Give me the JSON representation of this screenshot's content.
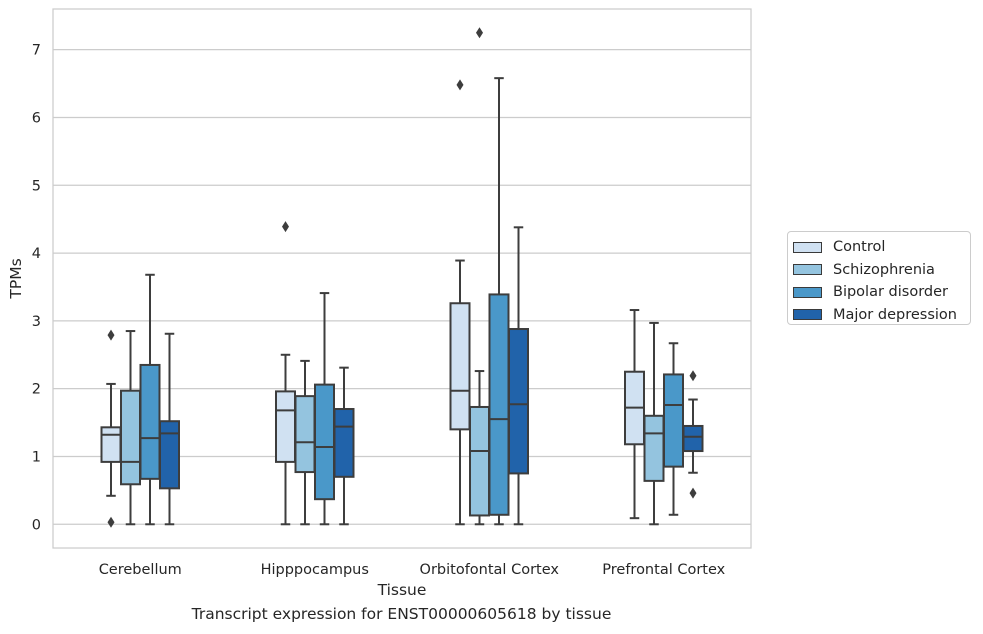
{
  "chart_data": {
    "type": "box",
    "xlabel": "Tissue",
    "ylabel": "TPMs",
    "ylim": [
      -0.35,
      7.6
    ],
    "yticks": [
      0,
      1,
      2,
      3,
      4,
      5,
      6,
      7
    ],
    "grid": true,
    "legend_position": "right",
    "categories": [
      "Cerebellum",
      "Hipppocampus",
      "Orbitofontal Cortex",
      "Prefrontal Cortex"
    ],
    "series": [
      {
        "name": "Control",
        "color": "#d0e1f2",
        "boxes": [
          {
            "whislo": 0.42,
            "q1": 0.92,
            "med": 1.32,
            "q3": 1.43,
            "whishi": 2.07,
            "fliers": [
              2.79,
              0.03
            ]
          },
          {
            "whislo": 0.0,
            "q1": 0.92,
            "med": 1.68,
            "q3": 1.96,
            "whishi": 2.5,
            "fliers": [
              4.39
            ]
          },
          {
            "whislo": 0.0,
            "q1": 1.4,
            "med": 1.97,
            "q3": 3.26,
            "whishi": 3.89,
            "fliers": [
              6.48
            ]
          },
          {
            "whislo": 0.09,
            "q1": 1.18,
            "med": 1.72,
            "q3": 2.25,
            "whishi": 3.16,
            "fliers": []
          }
        ]
      },
      {
        "name": "Schizophrenia",
        "color": "#94c4df",
        "boxes": [
          {
            "whislo": 0.0,
            "q1": 0.59,
            "med": 0.92,
            "q3": 1.97,
            "whishi": 2.85,
            "fliers": []
          },
          {
            "whislo": 0.0,
            "q1": 0.77,
            "med": 1.21,
            "q3": 1.89,
            "whishi": 2.41,
            "fliers": []
          },
          {
            "whislo": 0.0,
            "q1": 0.13,
            "med": 1.08,
            "q3": 1.73,
            "whishi": 2.26,
            "fliers": [
              7.25
            ]
          },
          {
            "whislo": 0.0,
            "q1": 0.64,
            "med": 1.34,
            "q3": 1.6,
            "whishi": 2.97,
            "fliers": []
          }
        ]
      },
      {
        "name": "Bipolar disorder",
        "color": "#4a98c9",
        "boxes": [
          {
            "whislo": 0.0,
            "q1": 0.67,
            "med": 1.27,
            "q3": 2.35,
            "whishi": 3.68,
            "fliers": []
          },
          {
            "whislo": 0.0,
            "q1": 0.37,
            "med": 1.14,
            "q3": 2.06,
            "whishi": 3.41,
            "fliers": []
          },
          {
            "whislo": 0.0,
            "q1": 0.14,
            "med": 1.55,
            "q3": 3.39,
            "whishi": 6.58,
            "fliers": []
          },
          {
            "whislo": 0.14,
            "q1": 0.85,
            "med": 1.76,
            "q3": 2.21,
            "whishi": 2.67,
            "fliers": []
          }
        ]
      },
      {
        "name": "Major depression",
        "color": "#2163aa",
        "boxes": [
          {
            "whislo": 0.0,
            "q1": 0.53,
            "med": 1.34,
            "q3": 1.52,
            "whishi": 2.81,
            "fliers": []
          },
          {
            "whislo": 0.0,
            "q1": 0.7,
            "med": 1.44,
            "q3": 1.7,
            "whishi": 2.31,
            "fliers": []
          },
          {
            "whislo": 0.0,
            "q1": 0.75,
            "med": 1.77,
            "q3": 2.88,
            "whishi": 4.38,
            "fliers": []
          },
          {
            "whislo": 0.76,
            "q1": 1.08,
            "med": 1.29,
            "q3": 1.45,
            "whishi": 1.84,
            "fliers": [
              2.19,
              0.46
            ]
          }
        ]
      }
    ]
  },
  "caption": "Transcript expression for ENST00000605618 by tissue"
}
